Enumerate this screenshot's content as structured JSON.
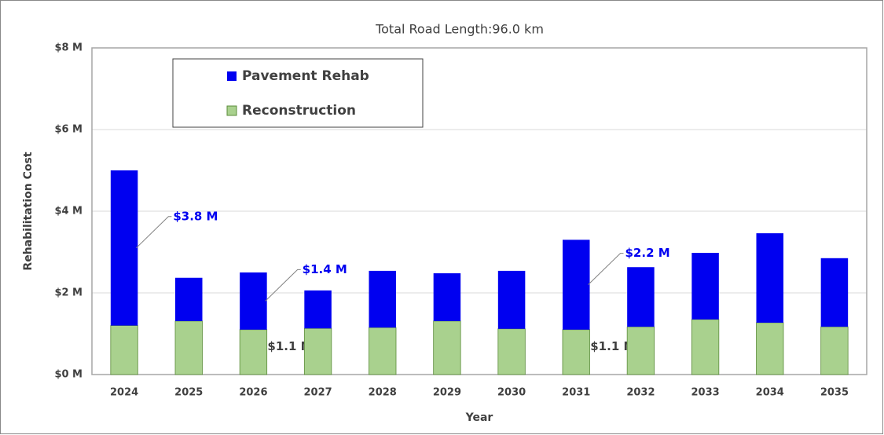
{
  "chart_data": {
    "type": "stacked_bar",
    "title": "Total Road Length:96.0 km",
    "x_label": "Year",
    "y_label": "Rehabilitation Cost",
    "categories": [
      "2024",
      "2025",
      "2026",
      "2027",
      "2028",
      "2029",
      "2030",
      "2031",
      "2032",
      "2033",
      "2034",
      "2035"
    ],
    "series": [
      {
        "name": "Reconstruction",
        "color": "#a9d18e",
        "values": [
          1.2,
          1.31,
          1.1,
          1.13,
          1.15,
          1.31,
          1.12,
          1.1,
          1.17,
          1.35,
          1.27,
          1.17
        ],
        "value_labels": [
          null,
          null,
          "$1.1 M",
          null,
          null,
          null,
          null,
          "$1.1 M",
          null,
          null,
          null,
          null
        ]
      },
      {
        "name": "Pavement Rehab",
        "color": "#0000f0",
        "values": [
          3.8,
          1.06,
          1.4,
          0.93,
          1.39,
          1.17,
          1.42,
          2.2,
          1.46,
          1.63,
          2.19,
          1.68
        ],
        "value_labels": [
          "$3.8 M",
          null,
          "$1.4 M",
          null,
          null,
          null,
          null,
          "$2.2 M",
          null,
          null,
          null,
          null
        ]
      }
    ],
    "ylim": [
      0,
      8
    ],
    "yticks": [
      {
        "value": 0,
        "label": "$0 M"
      },
      {
        "value": 2,
        "label": "$2 M"
      },
      {
        "value": 4,
        "label": "$4 M"
      },
      {
        "value": 6,
        "label": "$6 M"
      },
      {
        "value": 8,
        "label": "$8 M"
      }
    ],
    "grid": true
  }
}
